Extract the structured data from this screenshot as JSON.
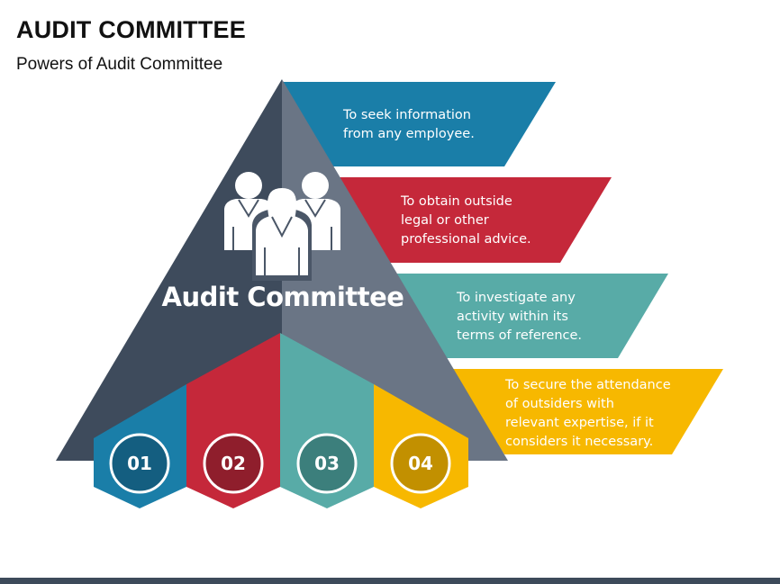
{
  "header": {
    "title": "AUDIT COMMITTEE",
    "subtitle": "Powers of Audit Committee"
  },
  "pyramid": {
    "label": "Audit Committee",
    "icon": "people-group-icon"
  },
  "powers": [
    {
      "number": "01",
      "text": "To seek information\nfrom any employee.",
      "color": "#1a7ea8"
    },
    {
      "number": "02",
      "text": "To obtain outside\nlegal or other\nprofessional advice.",
      "color": "#c5283a"
    },
    {
      "number": "03",
      "text": "To investigate any\nactivity within its\nterms of reference.",
      "color": "#58aba7"
    },
    {
      "number": "04",
      "text": "To secure the attendance\nof outsiders with\nrelevant expertise, if it\nconsiders it necessary.",
      "color": "#f7b800"
    }
  ],
  "colors": {
    "pyramid_left": "#3e4b5c",
    "pyramid_right": "#6a7585",
    "circle_01": "#145e80",
    "circle_02": "#8f1e2c",
    "circle_03": "#3c7f7c",
    "circle_04": "#c29000"
  }
}
